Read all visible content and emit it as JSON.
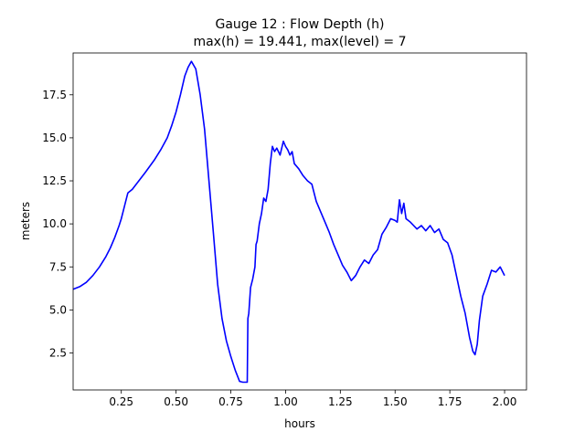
{
  "chart_data": {
    "type": "line",
    "title_line1": "Gauge 12 : Flow Depth (h)",
    "title_line2": "max(h) =  19.441,    max(level) = 7",
    "xlabel": "hours",
    "ylabel": "meters",
    "xlim": [
      0.03,
      2.1
    ],
    "ylim": [
      0.35,
      19.93
    ],
    "xticks": [
      0.25,
      0.5,
      0.75,
      1.0,
      1.25,
      1.5,
      1.75,
      2.0
    ],
    "xtick_labels": [
      "0.25",
      "0.50",
      "0.75",
      "1.00",
      "1.25",
      "1.50",
      "1.75",
      "2.00"
    ],
    "yticks": [
      2.5,
      5.0,
      7.5,
      10.0,
      12.5,
      15.0,
      17.5
    ],
    "ytick_labels": [
      "2.5",
      "5.0",
      "7.5",
      "10.0",
      "12.5",
      "15.0",
      "17.5"
    ],
    "grid": false,
    "line_color": "#0000ff",
    "series": [
      {
        "x": [
          0.03,
          0.06,
          0.09,
          0.12,
          0.15,
          0.18,
          0.2,
          0.22,
          0.24,
          0.25,
          0.26,
          0.27,
          0.28,
          0.3,
          0.33,
          0.36,
          0.4,
          0.43,
          0.46,
          0.48,
          0.5,
          0.52,
          0.54,
          0.555,
          0.57,
          0.59,
          0.61,
          0.63,
          0.65,
          0.67,
          0.69,
          0.71,
          0.73,
          0.75,
          0.77,
          0.79,
          0.805,
          0.815,
          0.825,
          0.828,
          0.832,
          0.84,
          0.85,
          0.86,
          0.865,
          0.87,
          0.88,
          0.89,
          0.9,
          0.91,
          0.92,
          0.93,
          0.94,
          0.95,
          0.96,
          0.975,
          0.99,
          1.0,
          1.01,
          1.02,
          1.03,
          1.04,
          1.06,
          1.08,
          1.1,
          1.12,
          1.14,
          1.16,
          1.18,
          1.2,
          1.22,
          1.24,
          1.26,
          1.28,
          1.3,
          1.32,
          1.34,
          1.36,
          1.38,
          1.4,
          1.42,
          1.44,
          1.46,
          1.48,
          1.5,
          1.51,
          1.52,
          1.53,
          1.54,
          1.55,
          1.57,
          1.6,
          1.62,
          1.64,
          1.66,
          1.68,
          1.7,
          1.72,
          1.74,
          1.76,
          1.78,
          1.8,
          1.82,
          1.84,
          1.855,
          1.865,
          1.875,
          1.885,
          1.9,
          1.92,
          1.94,
          1.96,
          1.98,
          2.0
        ],
        "y": [
          6.2,
          6.35,
          6.6,
          7.0,
          7.5,
          8.1,
          8.6,
          9.2,
          9.9,
          10.3,
          10.8,
          11.3,
          11.8,
          12.0,
          12.5,
          13.0,
          13.7,
          14.3,
          15.0,
          15.7,
          16.5,
          17.5,
          18.6,
          19.1,
          19.44,
          19.0,
          17.5,
          15.5,
          12.5,
          9.5,
          6.5,
          4.5,
          3.2,
          2.3,
          1.5,
          0.85,
          0.8,
          0.8,
          0.8,
          4.5,
          4.8,
          6.3,
          6.8,
          7.5,
          8.8,
          9.0,
          10.0,
          10.6,
          11.5,
          11.3,
          12.0,
          13.5,
          14.5,
          14.2,
          14.4,
          14.0,
          14.8,
          14.5,
          14.3,
          14.0,
          14.2,
          13.5,
          13.2,
          12.8,
          12.5,
          12.3,
          11.3,
          10.7,
          10.1,
          9.5,
          8.8,
          8.2,
          7.6,
          7.2,
          6.7,
          7.0,
          7.5,
          7.9,
          7.7,
          8.2,
          8.5,
          9.4,
          9.8,
          10.3,
          10.2,
          10.1,
          11.4,
          10.6,
          11.2,
          10.3,
          10.1,
          9.7,
          9.9,
          9.6,
          9.9,
          9.5,
          9.7,
          9.1,
          8.9,
          8.2,
          7.0,
          5.8,
          4.8,
          3.4,
          2.6,
          2.4,
          3.0,
          4.4,
          5.8,
          6.5,
          7.3,
          7.2,
          7.5,
          7.0
        ]
      }
    ]
  }
}
